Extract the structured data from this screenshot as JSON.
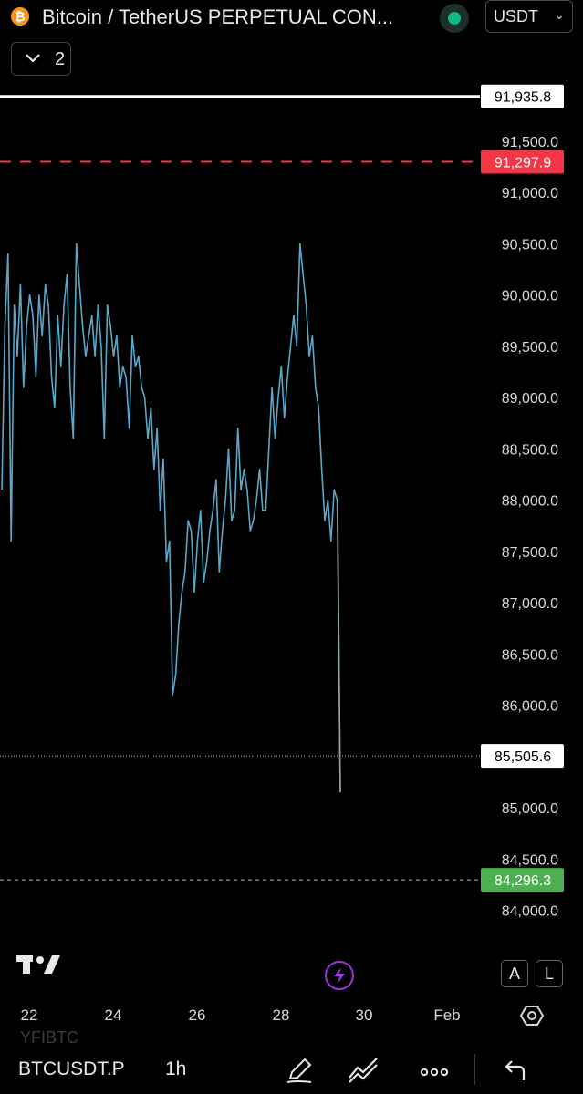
{
  "header": {
    "title": "Bitcoin / TetherUS PERPETUAL CON...",
    "currency": "USDT",
    "collapse_count": "2"
  },
  "chart_data": {
    "type": "line",
    "ylim": [
      84000,
      92000
    ],
    "y_ticks": [
      "91,500.0",
      "91,000.0",
      "90,500.0",
      "90,000.0",
      "89,500.0",
      "89,000.0",
      "88,500.0",
      "88,000.0",
      "87,500.0",
      "87,000.0",
      "86,500.0",
      "86,000.0",
      "85,000.0",
      "84,500.0",
      "84,000.0"
    ],
    "x_ticks": [
      "22",
      "24",
      "26",
      "28",
      "30",
      "Feb"
    ],
    "price_lines": [
      {
        "label": "91,935.8",
        "value": 91935.8,
        "style": "solid",
        "color": "#ffffff"
      },
      {
        "label": "91,297.9",
        "value": 91297.9,
        "style": "dashed",
        "color": "#f23645"
      },
      {
        "label": "85,505.6",
        "value": 85505.6,
        "style": "dotted",
        "color": "#ffffff"
      },
      {
        "label": "84,296.3",
        "value": 84296.3,
        "style": "dashed",
        "color": "#4caf50"
      }
    ],
    "series": [
      {
        "color": "#5aa7c9",
        "values": [
          88100,
          89700,
          90400,
          87600,
          89900,
          89400,
          90100,
          89100,
          89700,
          90000,
          89800,
          89200,
          90000,
          89600,
          90100,
          89900,
          89200,
          88900,
          89800,
          89300,
          89900,
          90200,
          89100,
          88600,
          90500,
          90100,
          89700,
          89400,
          89600,
          89800,
          89400,
          89900,
          89500,
          88600,
          89900,
          89700,
          89400,
          89600,
          89100,
          89300,
          89200,
          88700,
          89600,
          89300,
          89400,
          89100,
          89000,
          88600,
          88900,
          88300,
          88700,
          87900,
          88400,
          87400,
          87600,
          86100,
          86300,
          86800,
          87100,
          87300,
          87800,
          87700,
          87100,
          87600,
          87900,
          87200,
          87400,
          87700,
          87900,
          88200,
          87300,
          87700,
          88000,
          88500,
          87800,
          87900,
          88700,
          88100,
          88300,
          88100,
          87700,
          87800,
          88000,
          88300,
          87900,
          87900,
          88500,
          89100,
          88600,
          89000,
          89300,
          88800,
          89200,
          89500,
          89800,
          89500,
          90500,
          90200,
          89900,
          89400,
          89600,
          89100,
          88900,
          88300,
          87800,
          88000,
          87600,
          88100,
          88000,
          85150
        ]
      }
    ]
  },
  "controls": {
    "scale_auto": "A",
    "scale_log": "L"
  },
  "bottom_bar": {
    "ghost_text": "YFIBTC",
    "symbol": "BTCUSDT.P",
    "interval": "1h"
  }
}
